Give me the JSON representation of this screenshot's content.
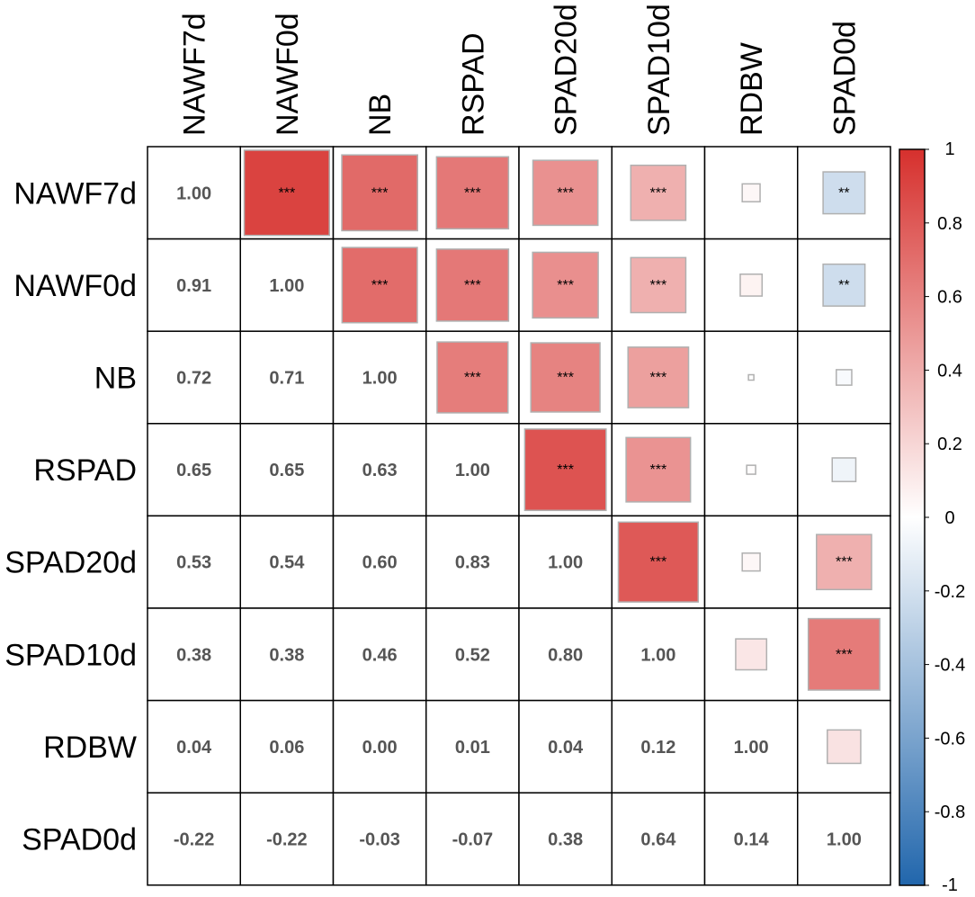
{
  "chart_data": {
    "type": "heatmap",
    "title": "",
    "variables": [
      "NAWF7d",
      "NAWF0d",
      "NB",
      "RSPAD",
      "SPAD20d",
      "SPAD10d",
      "RDBW",
      "SPAD0d"
    ],
    "column_labels": [
      "NAWF7d",
      "NAWF0d",
      "NB",
      "RSPAD",
      "SPAD20d",
      "SPAD10d",
      "RDBW",
      "SPAD0d"
    ],
    "row_labels": [
      "NAWF7d",
      "NAWF0d",
      "NB",
      "RSPAD",
      "SPAD20d",
      "SPAD10d",
      "RDBW",
      "SPAD0d"
    ],
    "matrix": [
      [
        1.0,
        0.91,
        0.72,
        0.65,
        0.53,
        0.38,
        0.04,
        -0.22
      ],
      [
        0.91,
        1.0,
        0.71,
        0.65,
        0.54,
        0.38,
        0.06,
        -0.22
      ],
      [
        0.72,
        0.71,
        1.0,
        0.63,
        0.6,
        0.46,
        0.0,
        -0.03
      ],
      [
        0.65,
        0.65,
        0.63,
        1.0,
        0.83,
        0.52,
        0.01,
        -0.07
      ],
      [
        0.53,
        0.54,
        0.6,
        0.83,
        1.0,
        0.8,
        0.04,
        0.38
      ],
      [
        0.38,
        0.38,
        0.46,
        0.52,
        0.8,
        1.0,
        0.12,
        0.64
      ],
      [
        0.04,
        0.06,
        0.0,
        0.01,
        0.04,
        0.12,
        1.0,
        0.14
      ],
      [
        -0.22,
        -0.22,
        -0.03,
        -0.07,
        0.38,
        0.64,
        0.14,
        1.0
      ]
    ],
    "lower_text": [
      [
        "1.00",
        "",
        "",
        "",
        "",
        "",
        "",
        ""
      ],
      [
        "0.91",
        "1.00",
        "",
        "",
        "",
        "",
        "",
        ""
      ],
      [
        "0.72",
        "0.71",
        "1.00",
        "",
        "",
        "",
        "",
        ""
      ],
      [
        "0.65",
        "0.65",
        "0.63",
        "1.00",
        "",
        "",
        "",
        ""
      ],
      [
        "0.53",
        "0.54",
        "0.60",
        "0.83",
        "1.00",
        "",
        "",
        ""
      ],
      [
        "0.38",
        "0.38",
        "0.46",
        "0.52",
        "0.80",
        "1.00",
        "",
        ""
      ],
      [
        "0.04",
        "0.06",
        "0.00",
        "0.01",
        "0.04",
        "0.12",
        "1.00",
        ""
      ],
      [
        "-0.22",
        "-0.22",
        "-0.03",
        "-0.07",
        "0.38",
        "0.64",
        "0.14",
        "1.00"
      ]
    ],
    "significance": [
      [
        "",
        "***",
        "***",
        "***",
        "***",
        "***",
        "",
        "**"
      ],
      [
        "",
        "",
        "***",
        "***",
        "***",
        "***",
        "",
        "**"
      ],
      [
        "",
        "",
        "",
        "***",
        "***",
        "***",
        "",
        ""
      ],
      [
        "",
        "",
        "",
        "",
        "***",
        "***",
        "",
        ""
      ],
      [
        "",
        "",
        "",
        "",
        "",
        "***",
        "",
        "***"
      ],
      [
        "",
        "",
        "",
        "",
        "",
        "",
        "",
        "***"
      ],
      [
        "",
        "",
        "",
        "",
        "",
        "",
        "",
        ""
      ],
      [
        "",
        "",
        "",
        "",
        "",
        "",
        "",
        ""
      ]
    ],
    "colorbar": {
      "min": -1,
      "max": 1,
      "ticks": [
        "1",
        "0.8",
        "0.6",
        "0.4",
        "0.2",
        "0",
        "-0.2",
        "-0.4",
        "-0.6",
        "-0.8",
        "-1"
      ],
      "tick_values": [
        1,
        0.8,
        0.6,
        0.4,
        0.2,
        0,
        -0.2,
        -0.4,
        -0.6,
        -0.8,
        -1
      ],
      "colors": {
        "negative": "#2166ac",
        "neutral": "#ffffff",
        "positive": "#d6302d"
      }
    }
  }
}
